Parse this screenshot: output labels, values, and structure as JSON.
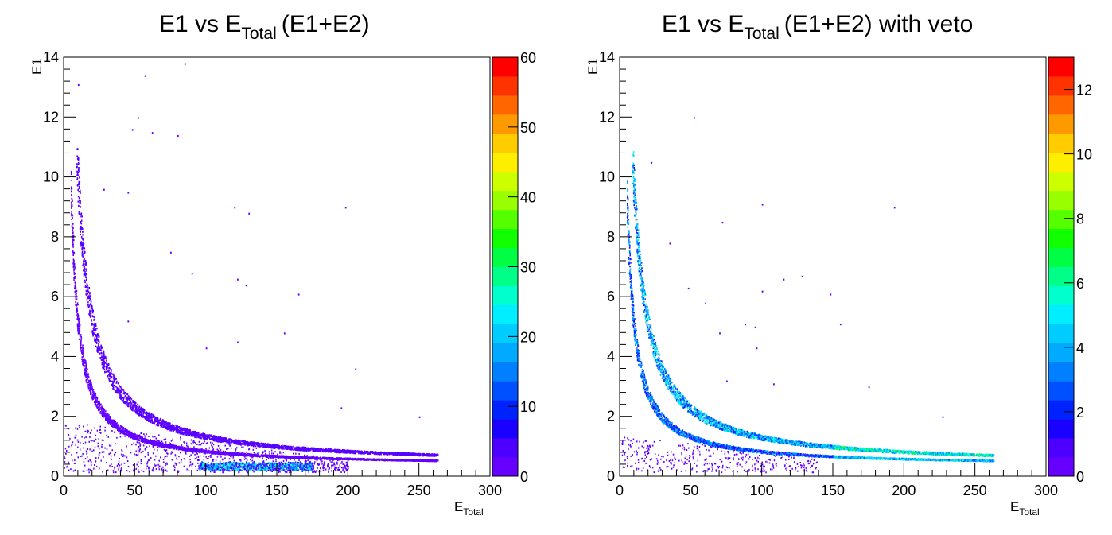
{
  "chart_data": [
    {
      "type": "heatmap",
      "title": "E1 vs E",
      "title_sub": "Total",
      "title_suffix": "(E1+E2)",
      "xlabel": "E",
      "xlabel_sub": "Total",
      "ylabel": "E1",
      "xlim": [
        0,
        300
      ],
      "ylim": [
        0,
        14
      ],
      "xticks": [
        0,
        50,
        100,
        150,
        200,
        250,
        300
      ],
      "yticks": [
        0,
        2,
        4,
        6,
        8,
        10,
        12,
        14
      ],
      "zlim": [
        0,
        60
      ],
      "zticks": [
        0,
        10,
        20,
        30,
        40,
        50,
        60
      ],
      "grid": false,
      "bands": [
        {
          "name": "upper_band",
          "k": 10.5,
          "x_start": 9,
          "x_end": 263,
          "level": 3
        },
        {
          "name": "lower_band",
          "k": 5.3,
          "x_start": 5,
          "x_end": 263,
          "level": 2
        },
        {
          "name": "hot_spot",
          "x_start": 95,
          "x_end": 175,
          "y": 0.35,
          "level": 25
        }
      ],
      "outliers": [
        [
          10,
          13.1
        ],
        [
          52,
          12.0
        ],
        [
          57,
          13.4
        ],
        [
          85,
          13.8
        ],
        [
          48,
          11.6
        ],
        [
          62,
          11.5
        ],
        [
          80,
          11.4
        ],
        [
          28,
          9.6
        ],
        [
          45,
          9.5
        ],
        [
          120,
          9.0
        ],
        [
          130,
          8.8
        ],
        [
          198,
          9.0
        ],
        [
          75,
          7.5
        ],
        [
          122,
          6.6
        ],
        [
          128,
          6.4
        ],
        [
          165,
          6.1
        ],
        [
          90,
          6.8
        ],
        [
          45,
          5.2
        ],
        [
          100,
          4.3
        ],
        [
          122,
          4.5
        ],
        [
          155,
          4.8
        ],
        [
          205,
          3.6
        ],
        [
          250,
          2.0
        ],
        [
          195,
          2.3
        ]
      ]
    },
    {
      "type": "heatmap",
      "title": "E1 vs E",
      "title_sub": "Total",
      "title_suffix": "(E1+E2) with veto",
      "xlabel": "E",
      "xlabel_sub": "Total",
      "ylabel": "E1",
      "xlim": [
        0,
        300
      ],
      "ylim": [
        0,
        14
      ],
      "xticks": [
        0,
        50,
        100,
        150,
        200,
        250,
        300
      ],
      "yticks": [
        0,
        2,
        4,
        6,
        8,
        10,
        12,
        14
      ],
      "zlim": [
        0,
        13
      ],
      "zticks": [
        0,
        2,
        4,
        6,
        8,
        10,
        12
      ],
      "grid": false,
      "bands": [
        {
          "name": "upper_band",
          "k": 10.2,
          "x_start": 9,
          "x_end": 263,
          "level": 4
        },
        {
          "name": "lower_band",
          "k": 5.2,
          "x_start": 5,
          "x_end": 263,
          "level": 3
        }
      ],
      "outliers": [
        [
          52,
          12.0
        ],
        [
          22,
          10.5
        ],
        [
          100,
          9.1
        ],
        [
          193,
          9.0
        ],
        [
          72,
          8.5
        ],
        [
          35,
          7.8
        ],
        [
          48,
          6.3
        ],
        [
          100,
          6.2
        ],
        [
          115,
          6.6
        ],
        [
          128,
          6.7
        ],
        [
          148,
          6.1
        ],
        [
          60,
          5.8
        ],
        [
          88,
          5.1
        ],
        [
          95,
          5.0
        ],
        [
          70,
          4.8
        ],
        [
          155,
          5.1
        ],
        [
          96,
          4.3
        ],
        [
          75,
          3.2
        ],
        [
          108,
          3.1
        ],
        [
          175,
          3.0
        ],
        [
          227,
          2.0
        ]
      ]
    }
  ]
}
